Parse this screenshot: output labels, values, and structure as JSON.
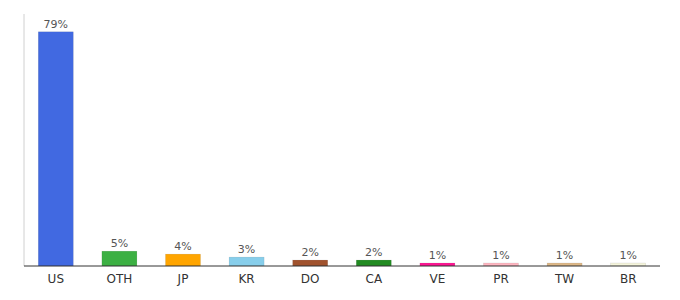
{
  "chart_data": {
    "type": "bar",
    "categories": [
      "US",
      "OTH",
      "JP",
      "KR",
      "DO",
      "CA",
      "VE",
      "PR",
      "TW",
      "BR"
    ],
    "values": [
      79,
      5,
      4,
      3,
      2,
      2,
      1,
      1,
      1,
      1
    ],
    "value_labels": [
      "79%",
      "5%",
      "4%",
      "3%",
      "2%",
      "2%",
      "1%",
      "1%",
      "1%",
      "1%"
    ],
    "colors": [
      "#4169e1",
      "#3cb043",
      "#ffa500",
      "#87ceeb",
      "#a0522d",
      "#228b22",
      "#ff1493",
      "#ffb6c1",
      "#deb887",
      "#f5f5dc"
    ],
    "ylim": [
      0,
      85
    ],
    "tick_labels": "x"
  }
}
